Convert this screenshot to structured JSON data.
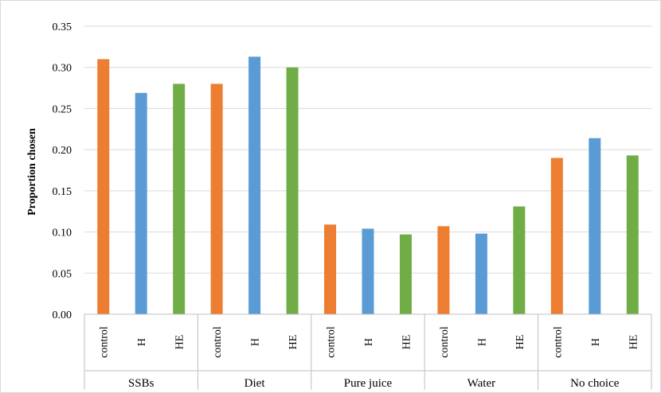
{
  "chart_data": {
    "type": "bar",
    "title": "",
    "xlabel": "",
    "ylabel": "Proportion chosen",
    "ylim": [
      0,
      0.35
    ],
    "yticks": [
      "0.00",
      "0.05",
      "0.10",
      "0.15",
      "0.20",
      "0.25",
      "0.30",
      "0.35"
    ],
    "grid": true,
    "legend": "none",
    "series_labels": [
      "control",
      "H",
      "HE"
    ],
    "series_colors": [
      "#ED7D31",
      "#5B9BD5",
      "#70AD47"
    ],
    "categories": [
      "SSBs",
      "Diet",
      "Pure juice",
      "Water",
      "No choice"
    ],
    "series": [
      {
        "values": [
          0.31,
          0.28,
          0.109,
          0.107,
          0.19
        ]
      },
      {
        "values": [
          0.269,
          0.313,
          0.104,
          0.098,
          0.214
        ]
      },
      {
        "values": [
          0.28,
          0.3,
          0.097,
          0.131,
          0.193
        ]
      }
    ]
  }
}
